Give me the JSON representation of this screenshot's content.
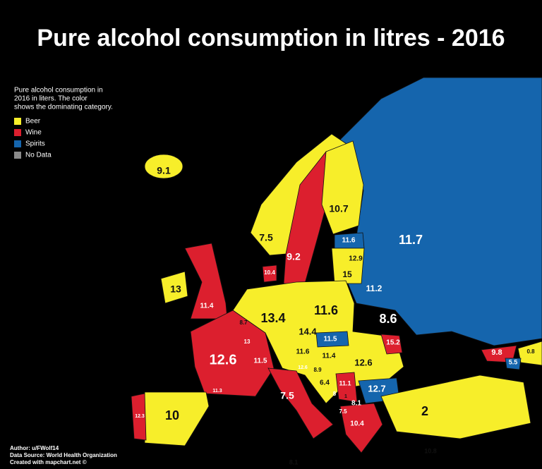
{
  "title": "Pure alcohol consumption in litres - 2016",
  "legend": {
    "title": [
      "Pure alcohol consumption in",
      "2016 in liters. The color",
      "shows the dominating category."
    ],
    "items": [
      {
        "label": "Beer",
        "color": "#f7ee2a"
      },
      {
        "label": "Wine",
        "color": "#dc1f2e"
      },
      {
        "label": "Spirits",
        "color": "#1565ad"
      },
      {
        "label": "No Data",
        "color": "#8a8a8a"
      }
    ]
  },
  "regions": [
    {
      "value": 9.1,
      "category": 0
    },
    {
      "value": 10.7,
      "category": 0
    },
    {
      "value": 7.5,
      "category": 0
    },
    {
      "value": 9.2,
      "category": 1
    },
    {
      "value": 11.7,
      "category": 2
    },
    {
      "value": 11.6,
      "category": 2
    },
    {
      "value": 12.9,
      "category": 0
    },
    {
      "value": 15,
      "category": 0
    },
    {
      "value": 10.4,
      "category": 1
    },
    {
      "value": 13,
      "category": 0
    },
    {
      "value": 11.4,
      "category": 1
    },
    {
      "value": 11.2,
      "category": 2
    },
    {
      "value": 13.4,
      "category": 0
    },
    {
      "value": 11.6,
      "category": 0
    },
    {
      "value": 8.6,
      "category": 2
    },
    {
      "value": 8.7,
      "category": 0
    },
    {
      "value": 13,
      "category": 1
    },
    {
      "value": 14.4,
      "category": 0
    },
    {
      "value": 11.5,
      "category": 2
    },
    {
      "value": 15.2,
      "category": 1
    },
    {
      "value": 11.6,
      "category": 0
    },
    {
      "value": 11.4,
      "category": 0
    },
    {
      "value": 12.6,
      "category": 1
    },
    {
      "value": 11.5,
      "category": 1
    },
    {
      "value": 12.6,
      "category": 0
    },
    {
      "value": 12.6,
      "category": 1
    },
    {
      "value": 8.9,
      "category": 0
    },
    {
      "value": 9.8,
      "category": 1
    },
    {
      "value": 0.8,
      "category": 0
    },
    {
      "value": 5.5,
      "category": 2
    },
    {
      "value": 6.4,
      "category": 0
    },
    {
      "value": 11.1,
      "category": 1
    },
    {
      "value": 12.7,
      "category": 2
    },
    {
      "value": 11.3,
      "category": 1
    },
    {
      "value": 7.5,
      "category": 1
    },
    {
      "value": 8,
      "category": 2
    },
    {
      "value": 1,
      "category": 0
    },
    {
      "value": 8.1,
      "category": 1
    },
    {
      "value": 7.5,
      "category": 2
    },
    {
      "value": 2,
      "category": 0
    },
    {
      "value": 10,
      "category": 0
    },
    {
      "value": 12.3,
      "category": 1
    },
    {
      "value": 10.4,
      "category": 1
    },
    {
      "value": 10.8,
      "category": 0
    },
    {
      "value": 8.1,
      "category": 0
    }
  ],
  "credits": [
    "Author: u/FWolf14",
    "Data Source: World Health Organization",
    "Created with mapchart.net ©"
  ]
}
